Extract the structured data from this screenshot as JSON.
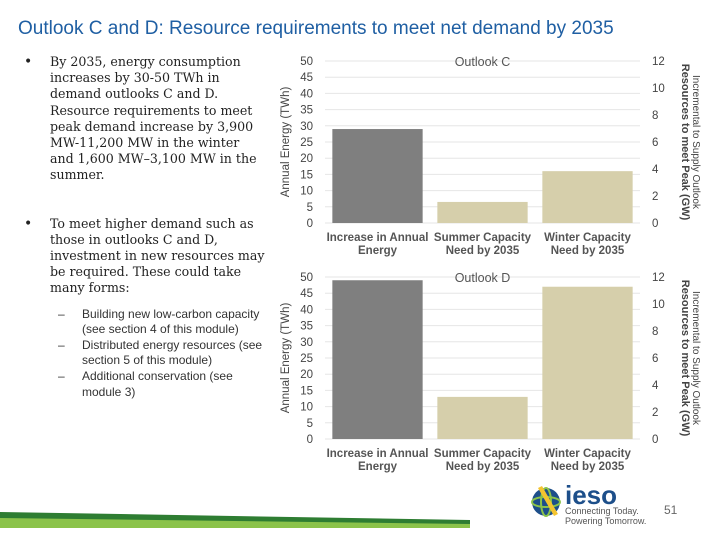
{
  "title": "Outlook C and D: Resource requirements to meet net demand by 2035",
  "bullets": [
    {
      "text": "By 2035, energy consumption increases by 30-50 TWh in demand outlooks C and D. Resource requirements to meet peak demand increase by 3,900 MW-11,200 MW in the winter and 1,600 MW–3,100 MW in the summer."
    },
    {
      "text": "To meet higher demand such as those in outlooks C and D, investment in new resources may be required. These could take many forms:",
      "subs": [
        "Building new low-carbon capacity (see section 4 of this module)",
        "Distributed energy resources (see section 5 of this module)",
        "Additional conservation (see module 3)"
      ]
    }
  ],
  "chart_data": [
    {
      "type": "bar",
      "title": "Outlook C",
      "categories": [
        [
          "Increase in Annual",
          "Energy"
        ],
        [
          "Summer Capacity",
          "Need by 2035"
        ],
        [
          "Winter Capacity",
          "Need by 2035"
        ]
      ],
      "values": [
        29,
        6.5,
        16
      ],
      "colors": [
        "#7f7f7f",
        "#d6cfab",
        "#d6cfab"
      ],
      "ylabel": "Annual Energy (TWh)",
      "ylabel2": [
        "Resources to meet Peak (GW)",
        "Incremental to Supply Outlook"
      ],
      "ylim": [
        0,
        50
      ],
      "yticks": [
        0,
        5,
        10,
        15,
        20,
        25,
        30,
        35,
        40,
        45,
        50
      ],
      "y2lim": [
        0,
        12
      ],
      "y2ticks": [
        0,
        2,
        4,
        6,
        8,
        10,
        12
      ],
      "grid": true
    },
    {
      "type": "bar",
      "title": "Outlook D",
      "categories": [
        [
          "Increase in Annual",
          "Energy"
        ],
        [
          "Summer Capacity",
          "Need by 2035"
        ],
        [
          "Winter Capacity",
          "Need by 2035"
        ]
      ],
      "values": [
        49,
        13,
        47
      ],
      "colors": [
        "#7f7f7f",
        "#d6cfab",
        "#d6cfab"
      ],
      "ylabel": "Annual Energy (TWh)",
      "ylabel2": [
        "Resources to meet Peak (GW)",
        "Incremental to Supply Outlook"
      ],
      "ylim": [
        0,
        50
      ],
      "yticks": [
        0,
        5,
        10,
        15,
        20,
        25,
        30,
        35,
        40,
        45,
        50
      ],
      "y2lim": [
        0,
        12
      ],
      "y2ticks": [
        0,
        2,
        4,
        6,
        8,
        10,
        12
      ],
      "grid": true
    }
  ],
  "logo": {
    "name": "ieso",
    "tagline": [
      "Connecting Today.",
      "Powering Tomorrow."
    ],
    "icon": "globe-icon"
  },
  "page_number": "51"
}
